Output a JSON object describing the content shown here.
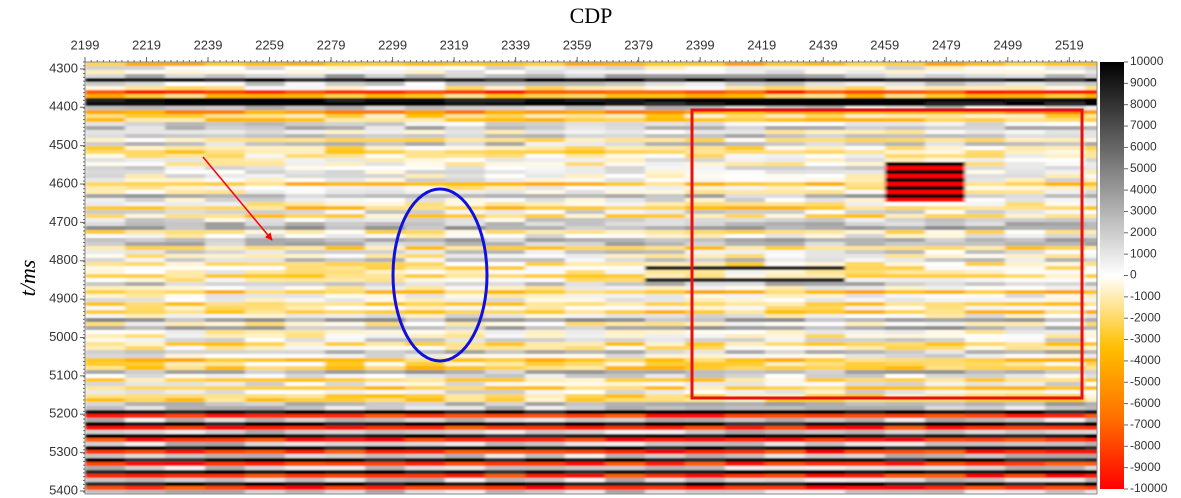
{
  "chart_data": {
    "type": "seismic",
    "x_label": "CDP",
    "y_label": "t/ms",
    "xlim": [
      2199,
      2528
    ],
    "xticks": [
      2199,
      2219,
      2239,
      2259,
      2279,
      2299,
      2319,
      2339,
      2359,
      2379,
      2399,
      2419,
      2439,
      2459,
      2479,
      2499,
      2519
    ],
    "ylim": [
      4282,
      5408
    ],
    "yticks": [
      4300,
      4400,
      4500,
      4600,
      4700,
      4800,
      4900,
      5000,
      5100,
      5200,
      5300,
      5400
    ],
    "colorbar": {
      "lim": [
        -10000,
        10000
      ],
      "ticks": [
        10000,
        9000,
        8000,
        7000,
        6000,
        5000,
        4000,
        3000,
        2000,
        1000,
        0,
        -1000,
        -2000,
        -3000,
        -4000,
        -5000,
        -6000,
        -7000,
        -8000,
        -9000,
        -10000
      ],
      "colors": [
        "#000000",
        "#808080",
        "#ffffff",
        "#ffc000",
        "#ff7000",
        "#ff0000"
      ]
    }
  }
}
